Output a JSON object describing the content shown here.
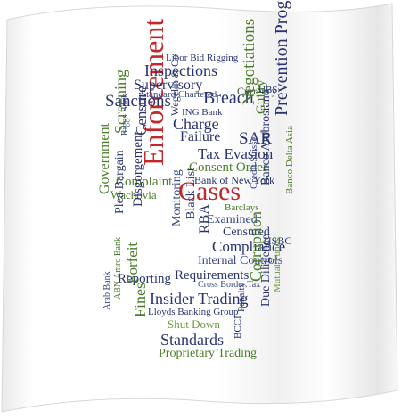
{
  "words": [
    {
      "id": "enforcement",
      "text": "Enforcement",
      "color": "#c0282b"
    },
    {
      "id": "cases",
      "text": "Cases",
      "color": "#c0282b"
    },
    {
      "id": "sanctions",
      "text": "Sanctions",
      "color": "#2a3470"
    },
    {
      "id": "breach",
      "text": "Breach",
      "color": "#2a3470"
    },
    {
      "id": "inspections",
      "text": "Inspections",
      "color": "#2a3470"
    },
    {
      "id": "supervisory",
      "text": "Supervisory",
      "color": "#2a3470"
    },
    {
      "id": "standard-chartered",
      "text": "Standard Chartered",
      "color": "#3b4a86"
    },
    {
      "id": "libor-bid-rigging",
      "text": "Libor Bid Rigging",
      "color": "#2a3470"
    },
    {
      "id": "negotiations",
      "text": "Negotiations",
      "color": "#4b7e2a"
    },
    {
      "id": "currency",
      "text": "Currency",
      "color": "#3a5a2a"
    },
    {
      "id": "guilty",
      "text": "Guilty",
      "color": "#4b7e2a"
    },
    {
      "id": "ubs",
      "text": "UBS",
      "color": "#2a3470"
    },
    {
      "id": "charge",
      "text": "Charge",
      "color": "#2a3470"
    },
    {
      "id": "failure",
      "text": "Failure",
      "color": "#2a3470"
    },
    {
      "id": "ing-bank",
      "text": "ING Bank",
      "color": "#2a3470"
    },
    {
      "id": "sar",
      "text": "SAR",
      "color": "#2a3470"
    },
    {
      "id": "prevention-programme",
      "text": "Prevention Programme",
      "color": "#2a3470"
    },
    {
      "id": "tax-evasion",
      "text": "Tax Evasion",
      "color": "#2a3470"
    },
    {
      "id": "consent-order",
      "text": "Consent Order",
      "color": "#4b7e2a"
    },
    {
      "id": "bank-of-new-york",
      "text": "Bank of New York",
      "color": "#2a3470"
    },
    {
      "id": "wegelin",
      "text": "Wegelin & Co",
      "color": "#2a3470"
    },
    {
      "id": "screening",
      "text": "Screening",
      "color": "#4b7e2a"
    },
    {
      "id": "censure",
      "text": "Censure",
      "color": "#2a3470"
    },
    {
      "id": "riggs-bank",
      "text": "Riggs Bank",
      "color": "#3b4a86"
    },
    {
      "id": "complaint",
      "text": "Complaint",
      "color": "#4b7e2a"
    },
    {
      "id": "wachovia",
      "text": "Wachovia",
      "color": "#4b7e2a"
    },
    {
      "id": "government",
      "text": "Government",
      "color": "#4b7e2a"
    },
    {
      "id": "plea-bargain",
      "text": "Plea Bargain",
      "color": "#2a3470"
    },
    {
      "id": "disgorgement",
      "text": "Disgorgement",
      "color": "#2a3470"
    },
    {
      "id": "banco-ambrosiano",
      "text": "Banco Ambrosiano",
      "color": "#2a3470"
    },
    {
      "id": "barclays",
      "text": "Barclays",
      "color": "#4b7e2a"
    },
    {
      "id": "examined",
      "text": "Examined",
      "color": "#3b4a86"
    },
    {
      "id": "censured",
      "text": "Censured",
      "color": "#2a3470"
    },
    {
      "id": "hsbc",
      "text": "HSBC",
      "color": "#2a3470"
    },
    {
      "id": "credit-suisse",
      "text": "Credit Suisse",
      "color": "#3b4a86"
    },
    {
      "id": "banco-delta-asia",
      "text": "Banco Delta Asia",
      "color": "#4b7e2a"
    },
    {
      "id": "black-list",
      "text": "Black List",
      "color": "#2a3470"
    },
    {
      "id": "rba",
      "text": "RBA",
      "color": "#2a3470"
    },
    {
      "id": "monitoring",
      "text": "Monitoring",
      "color": "#3b4a86"
    },
    {
      "id": "compliance",
      "text": "Compliance",
      "color": "#2a3470"
    },
    {
      "id": "internal-controls",
      "text": "Internal Controls",
      "color": "#3b4a86"
    },
    {
      "id": "requirements",
      "text": "Requirements",
      "color": "#2a3470"
    },
    {
      "id": "reporting",
      "text": "Reporting",
      "color": "#2a3470"
    },
    {
      "id": "cross-border-tax",
      "text": "Cross Border Tax",
      "color": "#3b4a86"
    },
    {
      "id": "forfeit",
      "text": "Forfeit",
      "color": "#4b7e2a"
    },
    {
      "id": "fines",
      "text": "Fines",
      "color": "#4b7e2a"
    },
    {
      "id": "insider-trading",
      "text": "Insider Trading",
      "color": "#2a3470"
    },
    {
      "id": "lloyds",
      "text": "Lloyds Banking Group",
      "color": "#2a3470"
    },
    {
      "id": "shut-down",
      "text": "Shut Down",
      "color": "#6a9a3a"
    },
    {
      "id": "standards",
      "text": "Standards",
      "color": "#2a3470"
    },
    {
      "id": "proprietary-trading",
      "text": "Proprietary Trading",
      "color": "#4b7e2a"
    },
    {
      "id": "corruption",
      "text": "Corruption",
      "color": "#4b7e2a"
    },
    {
      "id": "due-diligence",
      "text": "Due Diligence",
      "color": "#2a3470"
    },
    {
      "id": "mutual-funds",
      "text": "Mutual Funds",
      "color": "#6a9a3a"
    },
    {
      "id": "penalty",
      "text": "Penalty",
      "color": "#2a3470"
    },
    {
      "id": "bcci",
      "text": "BCCI",
      "color": "#2a3470"
    },
    {
      "id": "abn-amro",
      "text": "ABN Amro Bank",
      "color": "#4b7e2a"
    },
    {
      "id": "arab-bank",
      "text": "Arab Bank",
      "color": "#3b4a86"
    }
  ]
}
